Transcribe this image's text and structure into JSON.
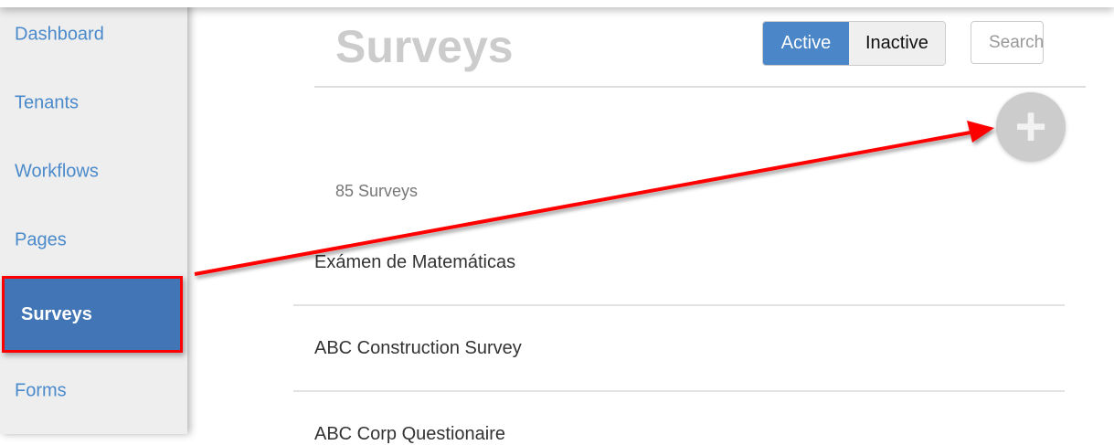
{
  "sidebar": {
    "items": [
      {
        "label": "Dashboard"
      },
      {
        "label": "Tenants"
      },
      {
        "label": "Workflows"
      },
      {
        "label": "Pages"
      },
      {
        "label": "Surveys",
        "active": true
      },
      {
        "label": "Forms"
      }
    ]
  },
  "header": {
    "title": "Surveys",
    "toggle": {
      "active": "Active",
      "inactive": "Inactive",
      "selected": "Active"
    },
    "search_placeholder": "Search"
  },
  "add_button": {
    "icon": "plus-icon"
  },
  "count_label": "85 Surveys",
  "surveys": [
    "Exámen de Matemáticas",
    "ABC Construction Survey",
    "ABC Corp Questionaire"
  ],
  "annotation": {
    "color": "#ff0000"
  }
}
